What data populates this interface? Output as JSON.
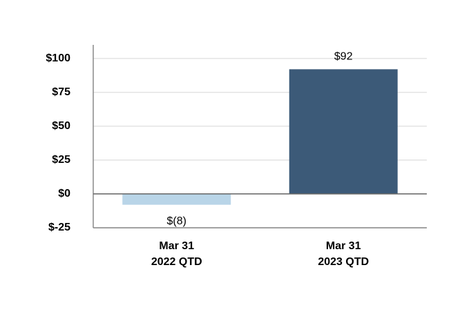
{
  "chart_data": {
    "type": "bar",
    "categories": [
      [
        "Mar 31",
        "2022 QTD"
      ],
      [
        "Mar 31",
        "2023 QTD"
      ]
    ],
    "values": [
      -8,
      92
    ],
    "value_labels": [
      "$(8)",
      "$92"
    ],
    "colors": [
      "#b9d5e8",
      "#3c5a78"
    ],
    "ylim": [
      -25,
      110
    ],
    "yticks": [
      {
        "value": -25,
        "label": "$-25"
      },
      {
        "value": 0,
        "label": "$0"
      },
      {
        "value": 25,
        "label": "$25"
      },
      {
        "value": 50,
        "label": "$50"
      },
      {
        "value": 75,
        "label": "$75"
      },
      {
        "value": 100,
        "label": "$100"
      }
    ],
    "grid": true
  }
}
